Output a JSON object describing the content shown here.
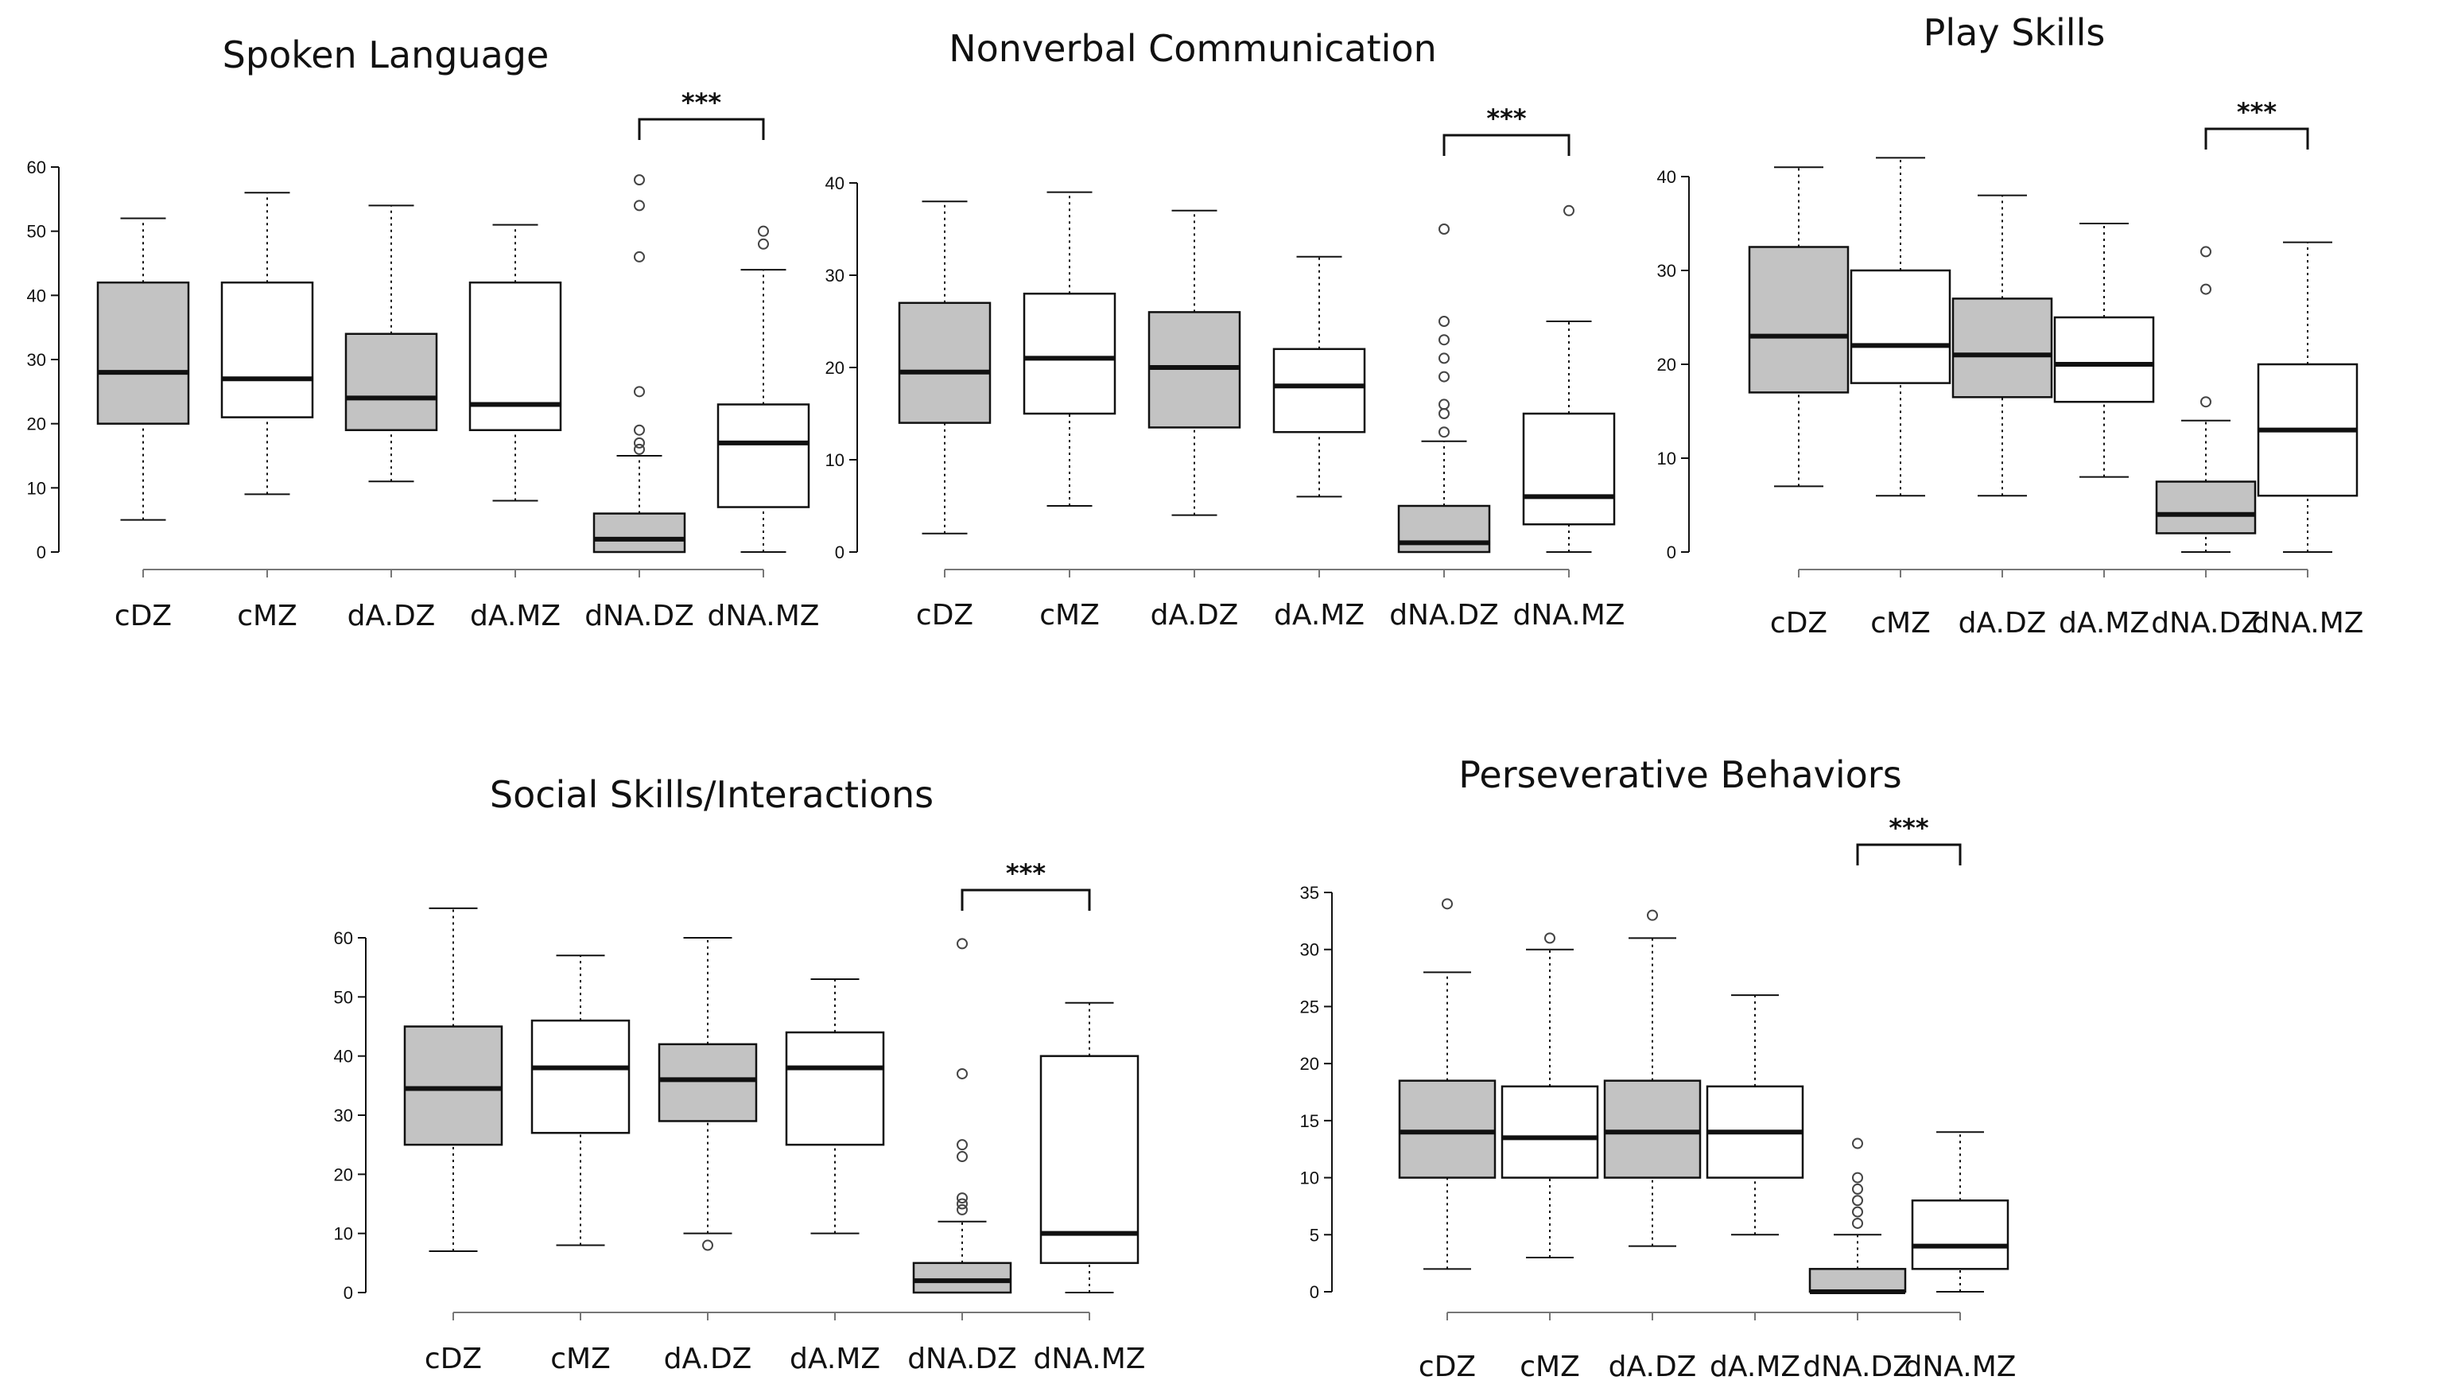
{
  "figure": {
    "colors": {
      "paired_box": "#c3c3c3",
      "unpaired_box": "#ffffff",
      "stroke": "#111111"
    },
    "significance_text": "***"
  },
  "chart_data": [
    {
      "type": "box",
      "title": "Spoken  Language",
      "xlabel": "",
      "ylabel": "",
      "ylim": [
        0,
        60
      ],
      "yticks": [
        0,
        10,
        20,
        30,
        40,
        50,
        60
      ],
      "categories": [
        "cDZ",
        "cMZ",
        "dA.DZ",
        "dA.MZ",
        "dNA.DZ",
        "dNA.MZ"
      ],
      "boxes": [
        {
          "category": "cDZ",
          "min": 5,
          "q1": 20,
          "median": 28,
          "q3": 42,
          "max": 52,
          "outliers": [],
          "fill": "gray"
        },
        {
          "category": "cMZ",
          "min": 9,
          "q1": 21,
          "median": 27,
          "q3": 42,
          "max": 56,
          "outliers": [],
          "fill": "white"
        },
        {
          "category": "dA.DZ",
          "min": 11,
          "q1": 19,
          "median": 24,
          "q3": 34,
          "max": 54,
          "outliers": [],
          "fill": "gray"
        },
        {
          "category": "dA.MZ",
          "min": 8,
          "q1": 19,
          "median": 23,
          "q3": 42,
          "max": 51,
          "outliers": [],
          "fill": "white"
        },
        {
          "category": "dNA.DZ",
          "min": 0,
          "q1": 0,
          "median": 2,
          "q3": 6,
          "max": 15,
          "outliers": [
            16,
            17,
            19,
            25,
            46,
            54,
            58
          ],
          "fill": "gray"
        },
        {
          "category": "dNA.MZ",
          "min": 0,
          "q1": 7,
          "median": 17,
          "q3": 23,
          "max": 44,
          "outliers": [
            48,
            50
          ],
          "fill": "white"
        }
      ],
      "significance": {
        "from": "dNA.DZ",
        "to": "dNA.MZ",
        "label": "***"
      }
    },
    {
      "type": "box",
      "title": "Nonverbal  Communication",
      "xlabel": "",
      "ylabel": "",
      "ylim": [
        0,
        40
      ],
      "yticks": [
        0,
        10,
        20,
        30,
        40
      ],
      "categories": [
        "cDZ",
        "cMZ",
        "dA.DZ",
        "dA.MZ",
        "dNA.DZ",
        "dNA.MZ"
      ],
      "boxes": [
        {
          "category": "cDZ",
          "min": 2,
          "q1": 14,
          "median": 19.5,
          "q3": 27,
          "max": 38,
          "outliers": [],
          "fill": "gray"
        },
        {
          "category": "cMZ",
          "min": 5,
          "q1": 15,
          "median": 21,
          "q3": 28,
          "max": 39,
          "outliers": [],
          "fill": "white"
        },
        {
          "category": "dA.DZ",
          "min": 4,
          "q1": 13.5,
          "median": 20,
          "q3": 26,
          "max": 37,
          "outliers": [],
          "fill": "gray"
        },
        {
          "category": "dA.MZ",
          "min": 6,
          "q1": 13,
          "median": 18,
          "q3": 22,
          "max": 32,
          "outliers": [],
          "fill": "white"
        },
        {
          "category": "dNA.DZ",
          "min": 0,
          "q1": 0,
          "median": 1,
          "q3": 5,
          "max": 12,
          "outliers": [
            13,
            15,
            16,
            19,
            21,
            23,
            25,
            35
          ],
          "fill": "gray"
        },
        {
          "category": "dNA.MZ",
          "min": 0,
          "q1": 3,
          "median": 6,
          "q3": 15,
          "max": 25,
          "outliers": [
            37
          ],
          "fill": "white"
        }
      ],
      "significance": {
        "from": "dNA.DZ",
        "to": "dNA.MZ",
        "label": "***"
      }
    },
    {
      "type": "box",
      "title": "Play Skills",
      "xlabel": "",
      "ylabel": "",
      "ylim": [
        0,
        40
      ],
      "yticks": [
        0,
        10,
        20,
        30,
        40
      ],
      "categories": [
        "cDZ",
        "cMZ",
        "dA.DZ",
        "dA.MZ",
        "dNA.DZ",
        "dNA.MZ"
      ],
      "boxes": [
        {
          "category": "cDZ",
          "min": 7,
          "q1": 17,
          "median": 23,
          "q3": 32.5,
          "max": 41,
          "outliers": [],
          "fill": "gray"
        },
        {
          "category": "cMZ",
          "min": 6,
          "q1": 18,
          "median": 22,
          "q3": 30,
          "max": 42,
          "outliers": [],
          "fill": "white"
        },
        {
          "category": "dA.DZ",
          "min": 6,
          "q1": 16.5,
          "median": 21,
          "q3": 27,
          "max": 38,
          "outliers": [],
          "fill": "gray"
        },
        {
          "category": "dA.MZ",
          "min": 8,
          "q1": 16,
          "median": 20,
          "q3": 25,
          "max": 35,
          "outliers": [],
          "fill": "white"
        },
        {
          "category": "dNA.DZ",
          "min": 0,
          "q1": 2,
          "median": 4,
          "q3": 7.5,
          "max": 14,
          "outliers": [
            16,
            28,
            32
          ],
          "fill": "gray"
        },
        {
          "category": "dNA.MZ",
          "min": 0,
          "q1": 6,
          "median": 13,
          "q3": 20,
          "max": 33,
          "outliers": [],
          "fill": "white"
        }
      ],
      "significance": {
        "from": "dNA.DZ",
        "to": "dNA.MZ",
        "label": "***"
      }
    },
    {
      "type": "box",
      "title": "Social Skills/Interactions",
      "xlabel": "",
      "ylabel": "",
      "ylim": [
        0,
        60
      ],
      "yticks": [
        0,
        10,
        20,
        30,
        40,
        50,
        60
      ],
      "categories": [
        "cDZ",
        "cMZ",
        "dA.DZ",
        "dA.MZ",
        "dNA.DZ",
        "dNA.MZ"
      ],
      "boxes": [
        {
          "category": "cDZ",
          "min": 7,
          "q1": 25,
          "median": 34.5,
          "q3": 45,
          "max": 65,
          "outliers": [],
          "fill": "gray"
        },
        {
          "category": "cMZ",
          "min": 8,
          "q1": 27,
          "median": 38,
          "q3": 46,
          "max": 57,
          "outliers": [],
          "fill": "white"
        },
        {
          "category": "dA.DZ",
          "min": 10,
          "q1": 29,
          "median": 36,
          "q3": 42,
          "max": 60,
          "outliers": [
            8
          ],
          "fill": "gray"
        },
        {
          "category": "dA.MZ",
          "min": 10,
          "q1": 25,
          "median": 38,
          "q3": 44,
          "max": 53,
          "outliers": [],
          "fill": "white"
        },
        {
          "category": "dNA.DZ",
          "min": 0,
          "q1": 0,
          "median": 2,
          "q3": 5,
          "max": 12,
          "outliers": [
            14,
            15,
            16,
            23,
            25,
            37,
            59
          ],
          "fill": "gray"
        },
        {
          "category": "dNA.MZ",
          "min": 0,
          "q1": 5,
          "median": 10,
          "q3": 40,
          "max": 49,
          "outliers": [],
          "fill": "white"
        }
      ],
      "significance": {
        "from": "dNA.DZ",
        "to": "dNA.MZ",
        "label": "***"
      }
    },
    {
      "type": "box",
      "title": "Perseverative Behaviors",
      "xlabel": "",
      "ylabel": "",
      "ylim": [
        0,
        35
      ],
      "yticks": [
        0,
        5,
        10,
        15,
        20,
        25,
        30,
        35
      ],
      "categories": [
        "cDZ",
        "cMZ",
        "dA.DZ",
        "dA.MZ",
        "dNA.DZ",
        "dNA.MZ"
      ],
      "boxes": [
        {
          "category": "cDZ",
          "min": 2,
          "q1": 10,
          "median": 14,
          "q3": 18.5,
          "max": 28,
          "outliers": [
            34
          ],
          "fill": "gray"
        },
        {
          "category": "cMZ",
          "min": 3,
          "q1": 10,
          "median": 13.5,
          "q3": 18,
          "max": 30,
          "outliers": [
            31
          ],
          "fill": "white"
        },
        {
          "category": "dA.DZ",
          "min": 4,
          "q1": 10,
          "median": 14,
          "q3": 18.5,
          "max": 31,
          "outliers": [
            33
          ],
          "fill": "gray"
        },
        {
          "category": "dA.MZ",
          "min": 5,
          "q1": 10,
          "median": 14,
          "q3": 18,
          "max": 26,
          "outliers": [],
          "fill": "white"
        },
        {
          "category": "dNA.DZ",
          "min": 0,
          "q1": 0,
          "median": 0,
          "q3": 2,
          "max": 5,
          "outliers": [
            6,
            7,
            8,
            9,
            10,
            13
          ],
          "fill": "gray"
        },
        {
          "category": "dNA.MZ",
          "min": 0,
          "q1": 2,
          "median": 4,
          "q3": 8,
          "max": 14,
          "outliers": [],
          "fill": "white"
        }
      ],
      "significance": {
        "from": "dNA.DZ",
        "to": "dNA.MZ",
        "label": "***"
      }
    }
  ]
}
